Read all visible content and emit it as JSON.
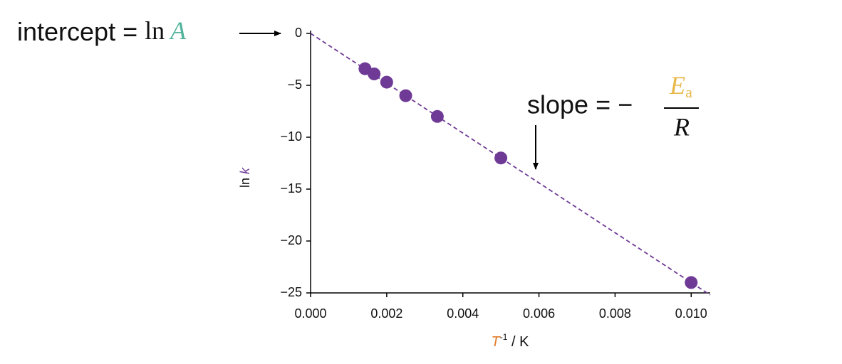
{
  "chart_data": {
    "type": "scatter",
    "x": [
      0.00143,
      0.00167,
      0.002,
      0.0025,
      0.00333,
      0.005,
      0.01
    ],
    "values": [
      -3.4,
      -3.9,
      -4.7,
      -6.0,
      -8.0,
      -12.0,
      -24.0
    ],
    "color": "#6f3a96",
    "fit": {
      "x": [
        0,
        0.0105
      ],
      "values": [
        0,
        -25.2
      ],
      "color": "#6f3a96",
      "dashed": true
    },
    "xlim": [
      0,
      0.0105
    ],
    "ylim": [
      -25,
      0
    ],
    "xticks": [
      {
        "value": 0,
        "label": "0.000"
      },
      {
        "value": 0.002,
        "label": "0.002"
      },
      {
        "value": 0.004,
        "label": "0.004"
      },
      {
        "value": 0.006,
        "label": "0.006"
      },
      {
        "value": 0.008,
        "label": "0.008"
      },
      {
        "value": 0.01,
        "label": "0.010"
      }
    ],
    "yticks": [
      0,
      {
        "value": -5,
        "label": "−5"
      },
      {
        "value": -10,
        "label": "−10"
      },
      {
        "value": -15,
        "label": "−15"
      },
      {
        "value": -20,
        "label": "−20"
      },
      {
        "value": -25,
        "label": "−25"
      }
    ],
    "xlabel": {
      "symbol": "T",
      "superscript": "-1",
      "unit": " / K"
    },
    "ylabel": {
      "text": "ln ",
      "symbol": "k"
    },
    "annotations": {
      "intercept": {
        "text": "intercept = ",
        "func": "ln",
        "symbol": "A"
      },
      "slope": {
        "text": "slope = −",
        "numerator": "E",
        "subscript": "a",
        "denominator": "R"
      }
    }
  }
}
